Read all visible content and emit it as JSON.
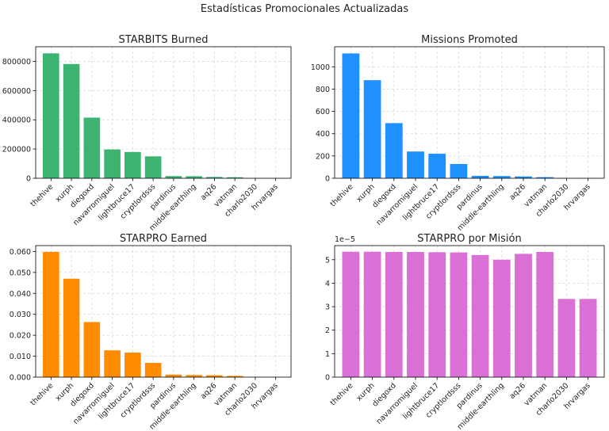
{
  "figure": {
    "title": "Estadísticas Promocionales Actualizadas"
  },
  "chart_data": [
    {
      "type": "bar",
      "title": "STARBITS Burned",
      "color": "#3cb371",
      "categories": [
        "thehive",
        "xurph",
        "diegoxd",
        "navarromiguel",
        "lightbruce17",
        "cryptlordsss",
        "pardinus",
        "middle-earthling",
        "aq26",
        "vatman",
        "charlo2030",
        "hrvargas"
      ],
      "values": [
        855000,
        782000,
        415000,
        197000,
        180000,
        150000,
        15000,
        14000,
        9000,
        7000,
        500,
        300
      ],
      "ylim": [
        0,
        900000
      ],
      "yticks": [
        0,
        200000,
        400000,
        600000,
        800000
      ],
      "ytick_labels": [
        "0",
        "200000",
        "400000",
        "600000",
        "800000"
      ],
      "offset_label": "",
      "xlabel": "",
      "ylabel": "",
      "grid": true
    },
    {
      "type": "bar",
      "title": "Missions Promoted",
      "color": "#1e90ff",
      "categories": [
        "thehive",
        "xurph",
        "diegoxd",
        "navarromiguel",
        "lightbruce17",
        "cryptlordsss",
        "pardinus",
        "middle-earthling",
        "aq26",
        "vatman",
        "charlo2030",
        "hrvargas"
      ],
      "values": [
        1120,
        880,
        495,
        240,
        220,
        128,
        22,
        20,
        16,
        10,
        1,
        1
      ],
      "ylim": [
        0,
        1180
      ],
      "yticks": [
        0,
        200,
        400,
        600,
        800,
        1000
      ],
      "ytick_labels": [
        "0",
        "200",
        "400",
        "600",
        "800",
        "1000"
      ],
      "offset_label": "",
      "xlabel": "",
      "ylabel": "",
      "grid": true
    },
    {
      "type": "bar",
      "title": "STARPRO Earned",
      "color": "#ff8c00",
      "categories": [
        "thehive",
        "xurph",
        "diegoxd",
        "navarromiguel",
        "lightbruce17",
        "cryptlordsss",
        "pardinus",
        "middle-earthling",
        "aq26",
        "vatman",
        "charlo2030",
        "hrvargas"
      ],
      "values": [
        0.0598,
        0.047,
        0.0263,
        0.0128,
        0.0117,
        0.0068,
        0.0012,
        0.001,
        0.0009,
        0.0006,
        3e-05,
        3e-05
      ],
      "ylim": [
        0,
        0.0628
      ],
      "yticks": [
        0,
        0.01,
        0.02,
        0.03,
        0.04,
        0.05,
        0.06
      ],
      "ytick_labels": [
        "0.000",
        "0.010",
        "0.020",
        "0.030",
        "0.040",
        "0.050",
        "0.060"
      ],
      "offset_label": "",
      "xlabel": "",
      "ylabel": "",
      "grid": true
    },
    {
      "type": "bar",
      "title": "STARPRO por Misión",
      "color": "#da70d6",
      "categories": [
        "thehive",
        "xurph",
        "diegoxd",
        "navarromiguel",
        "lightbruce17",
        "cryptlordsss",
        "pardinus",
        "middle-earthling",
        "aq26",
        "vatman",
        "charlo2030",
        "hrvargas"
      ],
      "values": [
        5.34,
        5.34,
        5.33,
        5.33,
        5.32,
        5.31,
        5.2,
        5.0,
        5.25,
        5.33,
        3.33,
        3.33
      ],
      "ylim": [
        0,
        5.6
      ],
      "yticks": [
        0,
        1,
        2,
        3,
        4,
        5
      ],
      "ytick_labels": [
        "0",
        "1",
        "2",
        "3",
        "4",
        "5"
      ],
      "offset_label": "1e−5",
      "xlabel": "",
      "ylabel": "",
      "grid": true
    }
  ]
}
